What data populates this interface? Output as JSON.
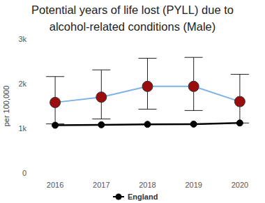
{
  "chart_data": {
    "type": "line",
    "title": [
      "Potential years of life lost (PYLL) due to",
      "alcohol-related conditions (Male)"
    ],
    "y_label": "per 100,000",
    "categories": [
      "2016",
      "2017",
      "2018",
      "2019",
      "2020"
    ],
    "series": [
      {
        "color": "#7fb2e5",
        "colors": [
          "#9b0d0d",
          "#9b0d0d",
          "#9b0d0d",
          "#9b0d0d",
          "#9b0d0d"
        ],
        "marker": "circle",
        "values": [
          1580,
          1700,
          1940,
          1940,
          1600
        ],
        "lower": [
          1100,
          1210,
          1430,
          1400,
          1120
        ],
        "upper": [
          2160,
          2310,
          2570,
          2590,
          2210
        ]
      },
      {
        "name": "England",
        "color": "#000000",
        "marker": "circle",
        "values": [
          1070,
          1080,
          1090,
          1095,
          1120
        ]
      }
    ],
    "ylim": [
      0,
      3000
    ],
    "yticks": [
      0,
      {
        "value": 1000,
        "label": "1k"
      },
      {
        "value": 2000,
        "label": "2k"
      },
      {
        "value": 3000,
        "label": "3k"
      }
    ],
    "grid": false,
    "legend": "bottom"
  }
}
